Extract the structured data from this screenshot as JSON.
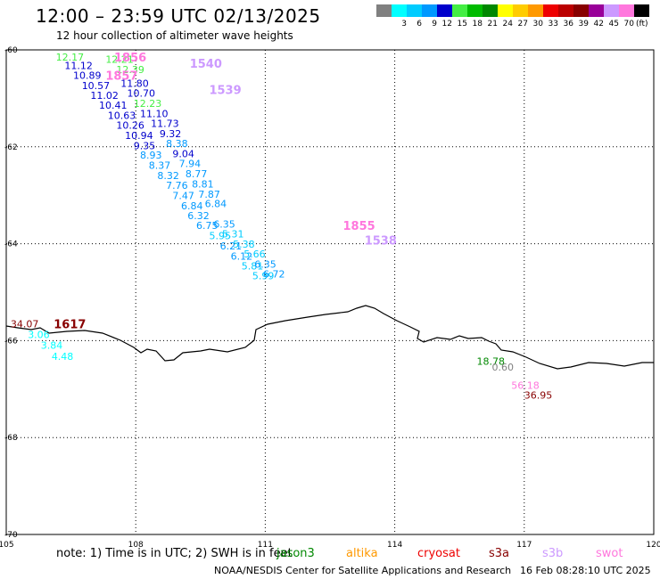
{
  "header": {
    "title": "12:00 – 23:59 UTC 02/13/2025",
    "subtitle": "12 hour collection of altimeter wave heights"
  },
  "legend": {
    "unit": "(ft)",
    "colors": [
      {
        "color": "#808080",
        "label": ""
      },
      {
        "color": "#00ffff",
        "label": "3"
      },
      {
        "color": "#00ccff",
        "label": "6"
      },
      {
        "color": "#0099ff",
        "label": "9"
      },
      {
        "color": "#0000cc",
        "label": "12"
      },
      {
        "color": "#44ee44",
        "label": "15"
      },
      {
        "color": "#00bb00",
        "label": "18"
      },
      {
        "color": "#008800",
        "label": "21"
      },
      {
        "color": "#ffff00",
        "label": "24"
      },
      {
        "color": "#ffcc00",
        "label": "27"
      },
      {
        "color": "#ff9900",
        "label": "30"
      },
      {
        "color": "#ee0000",
        "label": "33"
      },
      {
        "color": "#bb0000",
        "label": "36"
      },
      {
        "color": "#880000",
        "label": "39"
      },
      {
        "color": "#990099",
        "label": "42"
      },
      {
        "color": "#cc99ff",
        "label": "45"
      },
      {
        "color": "#ff77dd",
        "label": "70"
      },
      {
        "color": "#000000",
        "label": ""
      }
    ]
  },
  "map": {
    "lon_ticks": [
      "105",
      "108",
      "111",
      "114",
      "117",
      "120"
    ],
    "lat_ticks": [
      "-60",
      "-62",
      "-64",
      "-66",
      "-68",
      "-70"
    ],
    "lon_range": [
      105,
      120
    ],
    "lat_range": [
      -60,
      -70
    ],
    "observations": [
      {
        "text": "12.17",
        "color": "#44ee44",
        "lon": 106.15,
        "lat": -60.07
      },
      {
        "text": "11.12",
        "color": "#0000cc",
        "lon": 106.35,
        "lat": -60.25
      },
      {
        "text": "10.89",
        "color": "#0000cc",
        "lon": 106.55,
        "lat": -60.45
      },
      {
        "text": "10.57",
        "color": "#0000cc",
        "lon": 106.75,
        "lat": -60.66
      },
      {
        "text": "11.02",
        "color": "#0000cc",
        "lon": 106.95,
        "lat": -60.86
      },
      {
        "text": "10.41",
        "color": "#0000cc",
        "lon": 107.15,
        "lat": -61.07
      },
      {
        "text": "10.63",
        "color": "#0000cc",
        "lon": 107.35,
        "lat": -61.28
      },
      {
        "text": "10.26",
        "color": "#0000cc",
        "lon": 107.55,
        "lat": -61.48
      },
      {
        "text": "10.94",
        "color": "#0000cc",
        "lon": 107.75,
        "lat": -61.69
      },
      {
        "text": "9.35",
        "color": "#0000cc",
        "lon": 107.95,
        "lat": -61.9
      },
      {
        "text": "8.93",
        "color": "#0099ff",
        "lon": 108.1,
        "lat": -62.1
      },
      {
        "text": "8.37",
        "color": "#0099ff",
        "lon": 108.3,
        "lat": -62.31
      },
      {
        "text": "8.32",
        "color": "#0099ff",
        "lon": 108.5,
        "lat": -62.52
      },
      {
        "text": "7.76",
        "color": "#0099ff",
        "lon": 108.7,
        "lat": -62.72
      },
      {
        "text": "7.47",
        "color": "#0099ff",
        "lon": 108.85,
        "lat": -62.93
      },
      {
        "text": "6.84",
        "color": "#0099ff",
        "lon": 109.05,
        "lat": -63.14
      },
      {
        "text": "6.32",
        "color": "#0099ff",
        "lon": 109.2,
        "lat": -63.35
      },
      {
        "text": "6.75",
        "color": "#0099ff",
        "lon": 109.4,
        "lat": -63.55
      },
      {
        "text": "5.95",
        "color": "#00ccff",
        "lon": 109.7,
        "lat": -63.76
      },
      {
        "text": "6.21",
        "color": "#0099ff",
        "lon": 109.95,
        "lat": -63.97
      },
      {
        "text": "6.12",
        "color": "#0099ff",
        "lon": 110.2,
        "lat": -64.18
      },
      {
        "text": "5.81",
        "color": "#00ccff",
        "lon": 110.45,
        "lat": -64.38
      },
      {
        "text": "5.99",
        "color": "#00ccff",
        "lon": 110.7,
        "lat": -64.59
      },
      {
        "text": "12.21",
        "color": "#44ee44",
        "lon": 107.3,
        "lat": -60.12
      },
      {
        "text": "12.39",
        "color": "#44ee44",
        "lon": 107.55,
        "lat": -60.33
      },
      {
        "text": "11.80",
        "color": "#0000cc",
        "lon": 107.65,
        "lat": -60.62
      },
      {
        "text": "10.70",
        "color": "#0000cc",
        "lon": 107.8,
        "lat": -60.82
      },
      {
        "text": "12.23",
        "color": "#44ee44",
        "lon": 107.95,
        "lat": -61.03
      },
      {
        "text": "11.10",
        "color": "#0000cc",
        "lon": 108.1,
        "lat": -61.24
      },
      {
        "text": "11.73",
        "color": "#0000cc",
        "lon": 108.35,
        "lat": -61.44
      },
      {
        "text": "9.32",
        "color": "#0000cc",
        "lon": 108.55,
        "lat": -61.65
      },
      {
        "text": "8.38",
        "color": "#0099ff",
        "lon": 108.7,
        "lat": -61.86
      },
      {
        "text": "9.04",
        "color": "#0000cc",
        "lon": 108.85,
        "lat": -62.07
      },
      {
        "text": "7.94",
        "color": "#0099ff",
        "lon": 109.0,
        "lat": -62.27
      },
      {
        "text": "8.77",
        "color": "#0099ff",
        "lon": 109.15,
        "lat": -62.48
      },
      {
        "text": "8.81",
        "color": "#0099ff",
        "lon": 109.3,
        "lat": -62.69
      },
      {
        "text": "7.87",
        "color": "#0099ff",
        "lon": 109.45,
        "lat": -62.9
      },
      {
        "text": "6.84",
        "color": "#0099ff",
        "lon": 109.6,
        "lat": -63.1
      },
      {
        "text": "6.35",
        "color": "#0099ff",
        "lon": 109.8,
        "lat": -63.52
      },
      {
        "text": "5.31",
        "color": "#00ccff",
        "lon": 110.0,
        "lat": -63.72
      },
      {
        "text": "5.38",
        "color": "#00ccff",
        "lon": 110.25,
        "lat": -63.93
      },
      {
        "text": "5.66",
        "color": "#00ccff",
        "lon": 110.5,
        "lat": -64.14
      },
      {
        "text": "6.35",
        "color": "#0099ff",
        "lon": 110.75,
        "lat": -64.35
      },
      {
        "text": "6.72",
        "color": "#0099ff",
        "lon": 110.95,
        "lat": -64.55
      },
      {
        "text": "34.07",
        "color": "#880000",
        "lon": 105.1,
        "lat": -65.58
      },
      {
        "text": "3.06",
        "color": "#00ffff",
        "lon": 105.5,
        "lat": -65.8
      },
      {
        "text": "3.84",
        "color": "#00ffff",
        "lon": 105.8,
        "lat": -66.02
      },
      {
        "text": "4.48",
        "color": "#00ffff",
        "lon": 106.05,
        "lat": -66.25
      },
      {
        "text": "18.78",
        "color": "#008800",
        "lon": 115.9,
        "lat": -66.35
      },
      {
        "text": "0.60",
        "color": "#808080",
        "lon": 116.25,
        "lat": -66.47
      },
      {
        "text": "56.18",
        "color": "#ff77dd",
        "lon": 116.7,
        "lat": -66.85
      },
      {
        "text": "36.95",
        "color": "#880000",
        "lon": 117.0,
        "lat": -67.05
      }
    ],
    "pass_times": [
      {
        "text": "1856",
        "color": "#ff77dd",
        "lon": 107.5,
        "lat": -60.07
      },
      {
        "text": "1857",
        "color": "#ff77dd",
        "lon": 107.3,
        "lat": -60.45
      },
      {
        "text": "1540",
        "color": "#cc99ff",
        "lon": 109.25,
        "lat": -60.2
      },
      {
        "text": "1539",
        "color": "#cc99ff",
        "lon": 109.7,
        "lat": -60.74
      },
      {
        "text": "1855",
        "color": "#ff77dd",
        "lon": 112.8,
        "lat": -63.55
      },
      {
        "text": "1538",
        "color": "#cc99ff",
        "lon": 113.3,
        "lat": -63.85
      },
      {
        "text": "1617",
        "color": "#880000",
        "lon": 106.1,
        "lat": -65.58
      }
    ]
  },
  "footer": {
    "note": "note:  1) Time is in UTC;  2) SWH is in feet",
    "satellites": [
      {
        "name": "jason3",
        "color": "#008800"
      },
      {
        "name": "altika",
        "color": "#ff9900"
      },
      {
        "name": "cryosat",
        "color": "#ee0000"
      },
      {
        "name": "s3a",
        "color": "#880000"
      },
      {
        "name": "s3b",
        "color": "#cc99ff"
      },
      {
        "name": "swot",
        "color": "#ff77dd"
      }
    ],
    "credit": "NOAA/NESDIS Center for Satellite Applications and Research",
    "generated": "16 Feb 08:28:10 UTC 2025"
  }
}
